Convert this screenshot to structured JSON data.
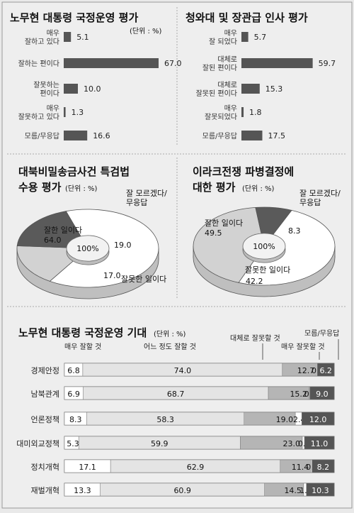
{
  "chart_data": [
    {
      "type": "bar",
      "title": "노무현 대통령 국정운영 평가",
      "unit": "(단위 : %)",
      "categories": [
        "매우\n잘하고 있다",
        "잘하는 편이다",
        "잘못하는\n편이다",
        "매우\n잘못하고 있다",
        "모름/무응답"
      ],
      "values": [
        5.1,
        67.0,
        10.0,
        1.3,
        16.6
      ],
      "value_labels": [
        "5.1",
        "67.0",
        "10.0",
        "1.3",
        "16.6"
      ],
      "bar_color": "#555555"
    },
    {
      "type": "bar",
      "title": "청와대 및 장관급 인사 평가",
      "categories": [
        "매우\n잘 되었다",
        "대체로\n잘된 편이다",
        "대체로\n잘못된 편이다",
        "매우\n잘못되었다",
        "모름/무응답"
      ],
      "values": [
        5.7,
        59.7,
        15.3,
        1.8,
        17.5
      ],
      "value_labels": [
        "5.7",
        "59.7",
        "15.3",
        "1.8",
        "17.5"
      ],
      "bar_color": "#555555"
    },
    {
      "type": "pie",
      "title": [
        "대북비밀송금사건 특검법",
        "수용 평가"
      ],
      "unit": "(단위 : %)",
      "center_label": "100%",
      "slices": [
        {
          "label": "잘한 일이다",
          "value": 64.0,
          "value_label": "64.0",
          "color": "#ffffff"
        },
        {
          "label": "잘못한 일이다",
          "value": 17.0,
          "value_label": "17.0",
          "color": "#d2d2d2"
        },
        {
          "label": "잘 모르겠다/\n무응답",
          "value": 19.0,
          "value_label": "19.0",
          "color": "#5a5a5a"
        }
      ]
    },
    {
      "type": "pie",
      "title": [
        "이라크전쟁 파병결정에",
        "대한 평가"
      ],
      "unit": "(단위 : %)",
      "center_label": "100%",
      "slices": [
        {
          "label": "잘한 일이다",
          "value": 49.5,
          "value_label": "49.5",
          "color": "#ffffff"
        },
        {
          "label": "잘못한 일이다",
          "value": 42.2,
          "value_label": "42.2",
          "color": "#d2d2d2"
        },
        {
          "label": "잘 모르겠다/\n무응답",
          "value": 8.3,
          "value_label": "8.3",
          "color": "#5a5a5a"
        }
      ]
    },
    {
      "type": "bar",
      "stacked": true,
      "orientation": "horizontal",
      "title": "노무현 대통령 국정운영 기대",
      "unit": "(단위 : %)",
      "categories": [
        "경제안정",
        "남북관계",
        "언론정책",
        "대미외교정책",
        "정치개혁",
        "재벌개혁"
      ],
      "series": [
        {
          "name": "매우 잘할 것",
          "color": "#ffffff",
          "values": [
            6.8,
            6.9,
            8.3,
            5.3,
            17.1,
            13.3
          ],
          "labels": [
            "6.8",
            "6.9",
            "8.3",
            "5.3",
            "17.1",
            "13.3"
          ]
        },
        {
          "name": "어느 정도 잘할 것",
          "color": "#e4e4e4",
          "values": [
            74.0,
            68.7,
            58.3,
            59.9,
            62.9,
            60.9
          ],
          "labels": [
            "74.0",
            "68.7",
            "58.3",
            "59.9",
            "62.9",
            "60.9"
          ]
        },
        {
          "name": "대체로 잘못할 것",
          "color": "#b5b5b5",
          "values": [
            12.7,
            15.2,
            19.0,
            23.0,
            11.4,
            14.5
          ],
          "labels": [
            "12.7",
            "15.2",
            "19.0",
            "23.0",
            "11.4",
            "14.5"
          ]
        },
        {
          "name": "매우 잘못할 것",
          "color": "#ffffff",
          "values": [
            0.3,
            0.2,
            2.4,
            0.8,
            0.4,
            1.0
          ],
          "labels": [
            "0.3",
            "0.2",
            "2.4",
            "0.8",
            "0.4",
            "1.0"
          ]
        },
        {
          "name": "모름/무응답",
          "color": "#555555",
          "values": [
            6.2,
            9.0,
            12.0,
            11.0,
            8.2,
            10.3
          ],
          "labels": [
            "6.2",
            "9.0",
            "12.0",
            "11.0",
            "8.2",
            "10.3"
          ]
        }
      ]
    }
  ]
}
